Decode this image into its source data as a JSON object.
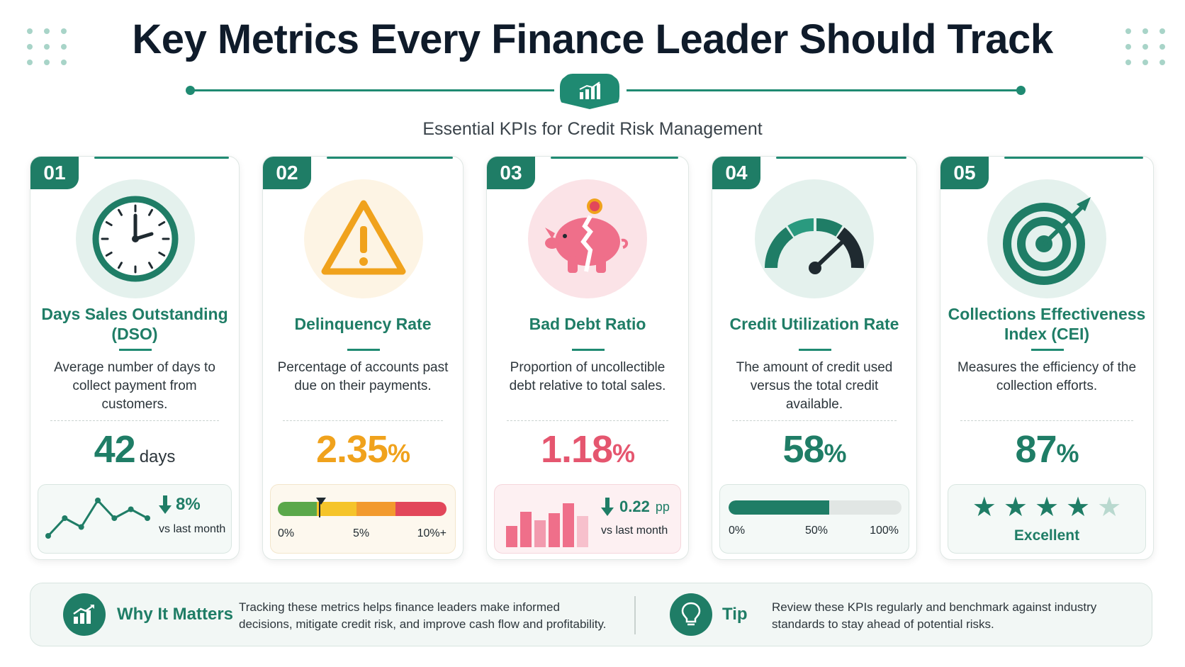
{
  "header": {
    "title": "Key Metrics Every Finance Leader Should Track",
    "subtitle": "Essential KPIs for Credit Risk Management"
  },
  "colors": {
    "primary": "#1f7d66",
    "warning": "#f0a21c",
    "danger": "#e5566f",
    "accent_green": "#1f8a72"
  },
  "cards": [
    {
      "number": "01",
      "icon": "clock-icon",
      "title": "Days Sales Outstanding (DSO)",
      "description": "Average number of days to collect payment from customers.",
      "value": "42",
      "unit": "days",
      "change": "8%",
      "change_direction": "down",
      "change_label": "vs last month",
      "trend": [
        1,
        3,
        2,
        5,
        3,
        4,
        3
      ]
    },
    {
      "number": "02",
      "icon": "warning-icon",
      "title": "Delinquency Rate",
      "description": "Percentage of accounts past due on their payments.",
      "value": "2.35",
      "unit": "%",
      "scale_labels": [
        "0%",
        "5%",
        "10%+"
      ]
    },
    {
      "number": "03",
      "icon": "piggy-bank-icon",
      "title": "Bad Debt Ratio",
      "description": "Proportion of uncollectible debt relative to total sales.",
      "value": "1.18",
      "unit": "%",
      "change": "0.22",
      "change_unit": "pp",
      "change_direction": "down",
      "change_label": "vs last month"
    },
    {
      "number": "04",
      "icon": "gauge-icon",
      "title": "Credit Utilization Rate",
      "description": "The amount of credit used versus the total credit available.",
      "value": "58",
      "unit": "%",
      "progress": 0.58,
      "scale_labels": [
        "0%",
        "50%",
        "100%"
      ]
    },
    {
      "number": "05",
      "icon": "target-icon",
      "title": "Collections Effectiveness Index (CEI)",
      "description": "Measures the efficiency of the collection efforts.",
      "value": "87",
      "unit": "%",
      "rating": 4,
      "rating_max": 5,
      "rating_label": "Excellent"
    }
  ],
  "footer": {
    "why_label": "Why It Matters",
    "why_text": "Tracking these metrics helps finance leaders make informed decisions, mitigate credit risk, and improve cash flow and profitability.",
    "tip_label": "Tip",
    "tip_text": "Review these KPIs regularly and benchmark against industry standards to stay ahead of potential risks."
  }
}
